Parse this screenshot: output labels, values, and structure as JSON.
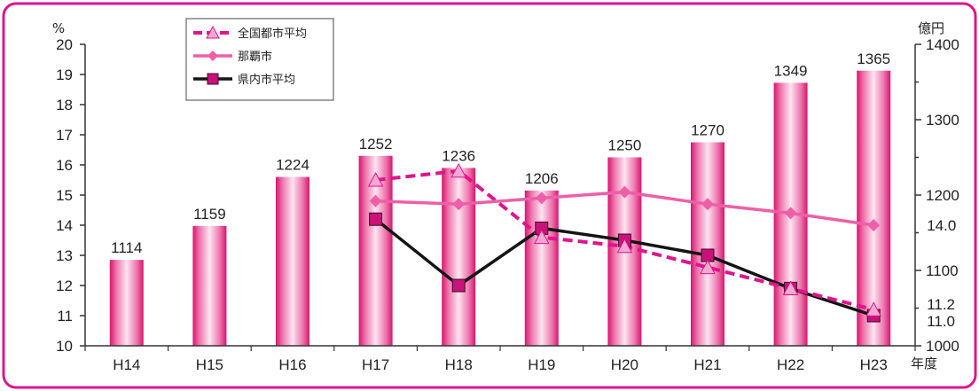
{
  "chart_data": {
    "type": "bar",
    "categories": [
      "H14",
      "H15",
      "H16",
      "H17",
      "H18",
      "H19",
      "H20",
      "H21",
      "H22",
      "H23"
    ],
    "x_unit": "年度",
    "bars": {
      "values": [
        1114,
        1159,
        1224,
        1252,
        1236,
        1206,
        1250,
        1270,
        1349,
        1365
      ],
      "labels": [
        "1114",
        "1159",
        "1224",
        "1252",
        "1236",
        "1206",
        "1250",
        "1270",
        "1349",
        "1365"
      ],
      "axis": "right"
    },
    "left_axis": {
      "unit": "%",
      "ylim": [
        10,
        20
      ],
      "ticks": [
        "10",
        "11",
        "12",
        "13",
        "14",
        "15",
        "16",
        "17",
        "18",
        "19",
        "20"
      ]
    },
    "right_axis": {
      "unit": "億円",
      "ylim": [
        1000,
        1400
      ],
      "ticks": [
        "1000",
        "1100",
        "1200",
        "1300",
        "1400"
      ]
    },
    "series": [
      {
        "name": "全国都市平均",
        "type": "line",
        "axis": "left",
        "style": "dashed",
        "color": "#e0148c",
        "marker": "triangle",
        "marker_color": "#f2a9d2",
        "values": [
          null,
          null,
          null,
          15.5,
          15.8,
          13.6,
          13.3,
          12.6,
          11.9,
          11.2
        ]
      },
      {
        "name": "那覇市",
        "type": "line",
        "axis": "left",
        "style": "solid",
        "color": "#ee5fa8",
        "marker": "diamond",
        "marker_color": "#ee5fa8",
        "values": [
          null,
          null,
          null,
          14.8,
          14.7,
          14.9,
          15.1,
          14.7,
          14.4,
          14.0
        ]
      },
      {
        "name": "県内市平均",
        "type": "line",
        "axis": "left",
        "style": "solid",
        "color": "#141414",
        "marker": "square",
        "marker_color": "#c8127a",
        "values": [
          null,
          null,
          null,
          14.2,
          12.0,
          13.9,
          13.5,
          13.0,
          11.9,
          11.0
        ]
      }
    ],
    "end_labels": [
      "14.0",
      "11.2",
      "11.0"
    ],
    "legend_position": "top-left",
    "colors": {
      "frame": "#e0148c",
      "bar_mid": "#d9156f",
      "bar_light": "#fde4f1"
    }
  }
}
